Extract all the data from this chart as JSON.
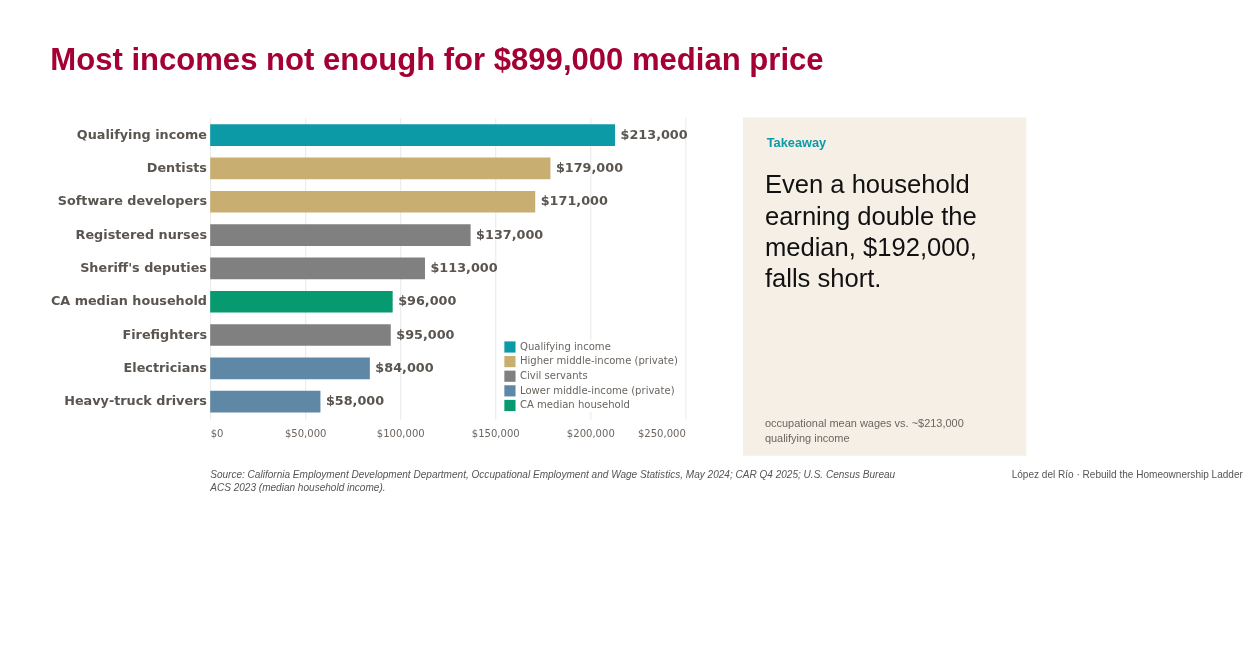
{
  "chart_data": [
    {
      "type": "bar",
      "orientation": "horizontal",
      "title": "Most incomes not enough for $899,000 median price",
      "categories": [
        "Qualifying income",
        "Dentists",
        "Software developers",
        "Registered nurses",
        "Sheriff's deputies",
        "CA median household",
        "Firefighters",
        "Electricians",
        "Heavy-truck drivers"
      ],
      "series": [
        {
          "name": "Qualifying income",
          "color": "#0b9aa6",
          "values": [
            213000,
            null,
            null,
            null,
            null,
            null,
            null,
            null,
            null
          ],
          "value_labels": [
            "$213,000",
            null,
            null,
            null,
            null,
            null,
            null,
            null,
            null
          ]
        },
        {
          "name": "Higher middle-income (private)",
          "color": "#c9ae72",
          "values": [
            null,
            179000,
            171000,
            null,
            null,
            null,
            null,
            null,
            null
          ],
          "value_labels": [
            null,
            "$179,000",
            "$171,000",
            null,
            null,
            null,
            null,
            null,
            null
          ]
        },
        {
          "name": "Civil servants",
          "color": "#808080",
          "values": [
            null,
            null,
            null,
            137000,
            113000,
            null,
            95000,
            null,
            null
          ],
          "value_labels": [
            null,
            null,
            null,
            "$137,000",
            "$113,000",
            null,
            "$95,000",
            null,
            null
          ]
        },
        {
          "name": "Lower middle-income (private)",
          "color": "#5e88a6",
          "values": [
            null,
            null,
            null,
            null,
            null,
            null,
            null,
            84000,
            58000
          ],
          "value_labels": [
            null,
            null,
            null,
            null,
            null,
            null,
            null,
            "$84,000",
            "$58,000"
          ]
        },
        {
          "name": "CA median household",
          "color": "#079a70",
          "values": [
            null,
            null,
            null,
            null,
            null,
            96000,
            null,
            null,
            null
          ],
          "value_labels": [
            null,
            null,
            null,
            null,
            null,
            "$96,000",
            null,
            null,
            null
          ]
        }
      ],
      "xlim": [
        0,
        250000
      ],
      "xticks": [
        {
          "value": 0,
          "label": "$0"
        },
        {
          "value": 50000,
          "label": "$50,000"
        },
        {
          "value": 100000,
          "label": "$100,000"
        },
        {
          "value": 150000,
          "label": "$150,000"
        },
        {
          "value": 200000,
          "label": "$200,000"
        },
        {
          "value": 250000,
          "label": "$250,000"
        }
      ],
      "grid": "x",
      "legend": "bottom right",
      "annotations": [
        "Source: California Employment Development Department, Occupational Employment and Wage Statistics, May 2024; CAR Q4 2025; U.S. Census Bureau ACS 2023 (median household income).",
        "López del Río · Rebuild the Homeownership Ladder"
      ]
    },
    {
      "type": "other",
      "title": "Takeaway",
      "annotations": [
        "Even a household earning double the median, $192,000, falls short.",
        "occupational mean wages vs. ~$213,000 qualifying income"
      ]
    }
  ]
}
